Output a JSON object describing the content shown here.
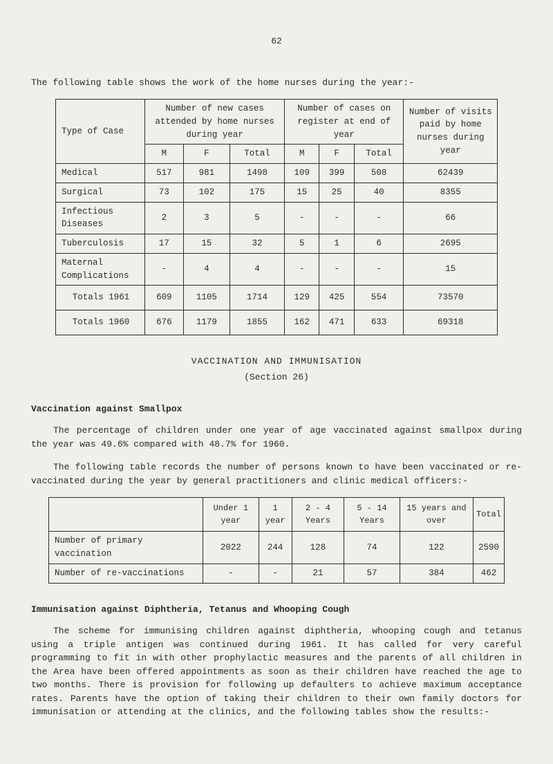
{
  "page_number": "62",
  "intro_text": "The following table shows the work of the home nurses during the year:-",
  "table1": {
    "header_type": "Type of Case",
    "header_col1": "Number of new cases attended by home nurses during year",
    "header_col2": "Number of cases on register at end of year",
    "header_col3": "Number of visits paid by home nurses during year",
    "sub_m": "M",
    "sub_f": "F",
    "sub_total": "Total",
    "rows": [
      {
        "label": "Medical",
        "c": [
          "517",
          "981",
          "1498",
          "109",
          "399",
          "508",
          "62439"
        ]
      },
      {
        "label": "Surgical",
        "c": [
          "73",
          "102",
          "175",
          "15",
          "25",
          "40",
          "8355"
        ]
      },
      {
        "label": "Infectious Diseases",
        "c": [
          "2",
          "3",
          "5",
          "-",
          "-",
          "-",
          "66"
        ]
      },
      {
        "label": "Tuberculosis",
        "c": [
          "17",
          "15",
          "32",
          "5",
          "1",
          "6",
          "2695"
        ]
      },
      {
        "label": "Maternal Complications",
        "c": [
          "-",
          "4",
          "4",
          "-",
          "-",
          "-",
          "15"
        ]
      }
    ],
    "totals_1961": {
      "label": "Totals 1961",
      "c": [
        "609",
        "1105",
        "1714",
        "129",
        "425",
        "554",
        "73570"
      ]
    },
    "totals_1960": {
      "label": "Totals 1960",
      "c": [
        "676",
        "1179",
        "1855",
        "162",
        "471",
        "633",
        "69318"
      ]
    }
  },
  "section_title": "VACCINATION AND IMMUNISATION",
  "section_sub": "(Section 26)",
  "heading_smallpox": "Vaccination against Smallpox",
  "para_smallpox": "The percentage of children under one year of age vaccinated against smallpox during the year was 49.6% compared with 48.7% for 1960.",
  "para_intro2": "The following table records the number of persons known to have been vaccinated or re-vaccinated during the year by general practitioners and clinic medical officers:-",
  "table2": {
    "headers": [
      "",
      "Under 1 year",
      "1 year",
      "2 - 4 Years",
      "5 - 14 Years",
      "15 years and over",
      "Total"
    ],
    "rows": [
      {
        "label": "Number of primary vaccination",
        "c": [
          "2022",
          "244",
          "128",
          "74",
          "122",
          "2590"
        ]
      },
      {
        "label": "Number of re-vaccinations",
        "c": [
          "-",
          "-",
          "21",
          "57",
          "384",
          "462"
        ]
      }
    ]
  },
  "heading_dtw": "Immunisation against Diphtheria, Tetanus and Whooping Cough",
  "para_dtw": "The scheme for immunising children against diphtheria, whooping cough and tetanus using a triple antigen was continued during 1961.  It has called for very careful programming to fit in with other prophylactic measures and the parents of all children in the Area have been offered appointments as soon as their children have reached the age to two months.  There is provision for following up defaulters to achieve maximum acceptance rates.  Parents have the option of taking their children to their own family doctors for immunisation or attending at the clinics, and the following tables show the results:-"
}
